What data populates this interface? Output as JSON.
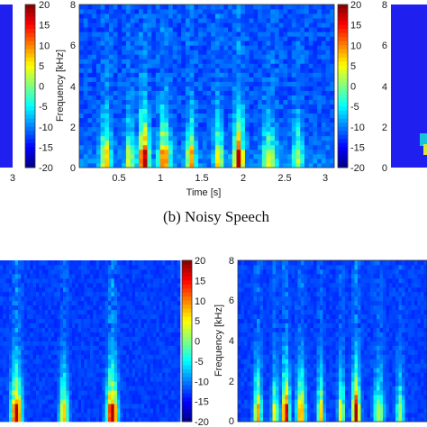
{
  "caption": "(b) Noisy Speech",
  "colors": {
    "low": "#1f1ff0",
    "accent": "#f6c93a"
  },
  "chart_data": [
    {
      "type": "heatmap",
      "panel": "top-left-partial",
      "colorbar_ticks": [
        "20",
        "15",
        "10",
        "5",
        "0",
        "-5",
        "-10",
        "-15",
        "-20"
      ],
      "xticks": [
        "3"
      ]
    },
    {
      "type": "heatmap",
      "panel": "top-center-noisy",
      "xlabel": "Time [s]",
      "ylabel": "Frequency [kHz]",
      "xlim": [
        0,
        3.15
      ],
      "ylim": [
        0,
        8
      ],
      "xticks": [
        "0.5",
        "1",
        "1.5",
        "2",
        "2.5",
        "3"
      ],
      "yticks": [
        "0",
        "2",
        "4",
        "6",
        "8"
      ],
      "colorbar_ticks": [
        "20",
        "15",
        "10",
        "5",
        "0",
        "-5",
        "-10",
        "-15",
        "-20"
      ],
      "clim": [
        -20,
        20
      ],
      "speech_segments": [
        {
          "t": 0.33,
          "w": 0.06,
          "strength": 0.55
        },
        {
          "t": 0.62,
          "w": 0.05,
          "strength": 0.45
        },
        {
          "t": 0.8,
          "w": 0.06,
          "strength": 0.85
        },
        {
          "t": 1.05,
          "w": 0.07,
          "strength": 0.65
        },
        {
          "t": 1.38,
          "w": 0.05,
          "strength": 0.6
        },
        {
          "t": 1.72,
          "w": 0.05,
          "strength": 0.5
        },
        {
          "t": 1.97,
          "w": 0.06,
          "strength": 0.85
        },
        {
          "t": 2.35,
          "w": 0.08,
          "strength": 0.4
        },
        {
          "t": 2.7,
          "w": 0.06,
          "strength": 0.35
        }
      ]
    },
    {
      "type": "heatmap",
      "panel": "top-right-partial",
      "yticks": [
        "0",
        "2",
        "4",
        "6",
        "8"
      ],
      "colorbar_ticks": [
        "20",
        "15",
        "10",
        "5",
        "0",
        "-5",
        "-10",
        "-15",
        "-20"
      ]
    },
    {
      "type": "heatmap",
      "panel": "bottom-left-partial",
      "colorbar_ticks": [
        "20",
        "15",
        "10",
        "5",
        "0",
        "-5",
        "-10",
        "-15",
        "-20"
      ],
      "speech_segments": [
        {
          "t": 0.8,
          "w": 0.06,
          "strength": 0.9
        },
        {
          "t": 1.38,
          "w": 0.05,
          "strength": 0.6
        },
        {
          "t": 1.97,
          "w": 0.06,
          "strength": 0.95
        }
      ]
    },
    {
      "type": "heatmap",
      "panel": "bottom-right",
      "ylabel": "Frequency [kHz]",
      "yticks": [
        "0",
        "2",
        "4",
        "6",
        "8"
      ],
      "ylim": [
        0,
        8
      ],
      "speech_segments": [
        {
          "t": 0.33,
          "w": 0.06,
          "strength": 0.65
        },
        {
          "t": 0.62,
          "w": 0.05,
          "strength": 0.55
        },
        {
          "t": 0.8,
          "w": 0.06,
          "strength": 0.9
        },
        {
          "t": 1.05,
          "w": 0.07,
          "strength": 0.65
        },
        {
          "t": 1.38,
          "w": 0.05,
          "strength": 0.6
        },
        {
          "t": 1.72,
          "w": 0.05,
          "strength": 0.55
        },
        {
          "t": 1.97,
          "w": 0.06,
          "strength": 0.95
        },
        {
          "t": 2.35,
          "w": 0.08,
          "strength": 0.45
        },
        {
          "t": 2.7,
          "w": 0.06,
          "strength": 0.4
        }
      ]
    }
  ]
}
